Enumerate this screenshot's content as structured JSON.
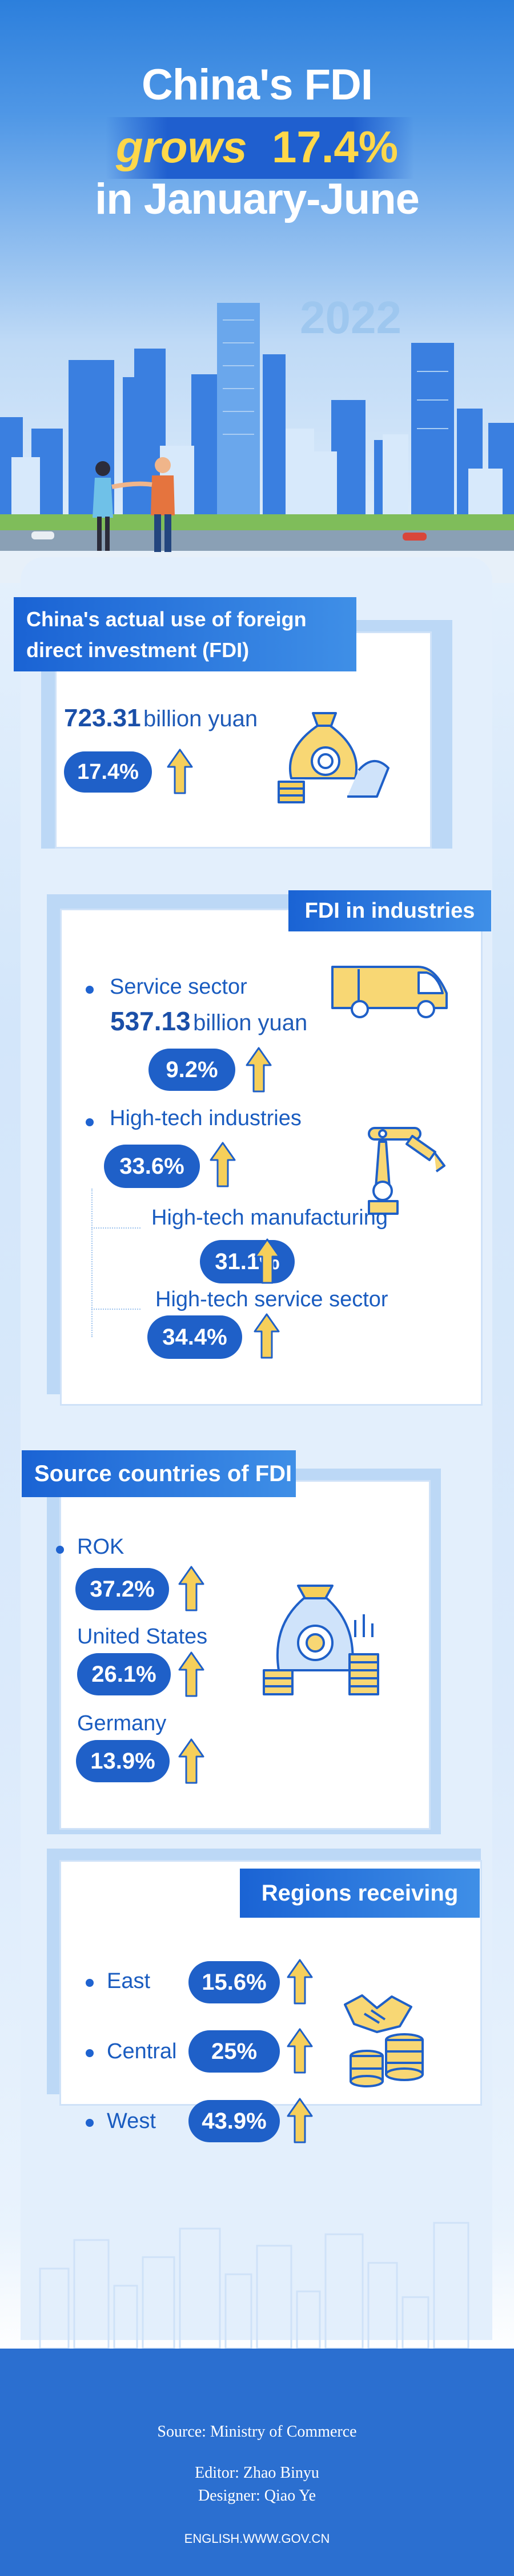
{
  "header": {
    "title_line1": "China's FDI",
    "title_grows": "grows",
    "title_pct": "17.4%",
    "title_line3": "in January-June",
    "year": "2022"
  },
  "section1": {
    "title_line1": "China's actual use of foreign",
    "title_line2": "direct investment (FDI)",
    "amount": "723.31",
    "unit": "billion yuan",
    "growth": "17.4%"
  },
  "section2": {
    "title": "FDI in industries",
    "service_label": "Service sector",
    "service_amount": "537.13",
    "service_unit": "billion yuan",
    "service_growth": "9.2%",
    "hightech_label": "High-tech industries",
    "hightech_growth": "33.6%",
    "manufacturing_label": "High-tech manufacturing",
    "manufacturing_growth": "31.1%",
    "service_sub_label": "High-tech service sector",
    "service_sub_growth": "34.4%"
  },
  "section3": {
    "title": "Source countries of FDI",
    "items": [
      {
        "label": "ROK",
        "growth": "37.2%"
      },
      {
        "label": "United States",
        "growth": "26.1%"
      },
      {
        "label": "Germany",
        "growth": "13.9%"
      }
    ]
  },
  "section4": {
    "title": "Regions receiving FDI",
    "items": [
      {
        "label": "East",
        "growth": "15.6%"
      },
      {
        "label": "Central",
        "growth": "25%"
      },
      {
        "label": "West",
        "growth": "43.9%"
      }
    ]
  },
  "footer": {
    "source": "Source: Ministry of Commerce",
    "editor": "Editor: Zhao Binyu",
    "designer": "Designer: Qiao Ye",
    "site": "ENGLISH.WWW.GOV.CN"
  },
  "colors": {
    "primary_blue": "#1f60c8",
    "arrow_yellow": "#f6cf5a",
    "title_yellow": "#ffd84a",
    "footer_blue": "#2b6fd0"
  },
  "icons": [
    "money-bag-icon",
    "up-arrow-icon",
    "delivery-van-icon",
    "robot-arm-icon",
    "money-sack-coins-icon",
    "handshake-coins-icon",
    "city-skyline-illustration",
    "businesspeople-handshake-illustration"
  ]
}
